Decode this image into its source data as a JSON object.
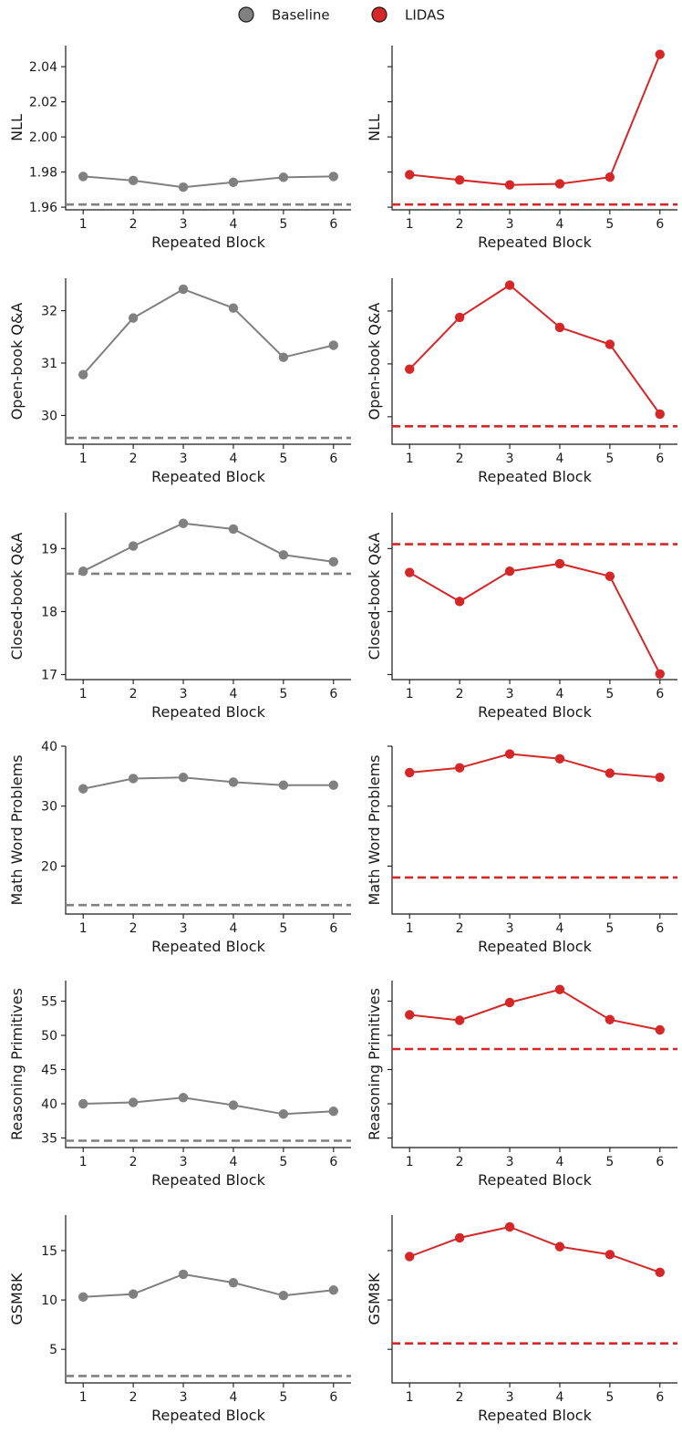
{
  "legend": {
    "placement": "top-center",
    "entries": [
      {
        "name": "Baseline",
        "color": "#808080"
      },
      {
        "name": "LIDAS",
        "color": "#d62728"
      }
    ]
  },
  "chart_data": [
    {
      "type": "line",
      "row": 0,
      "column": 0,
      "series_name": "Baseline",
      "color": "#808080",
      "ylabel": "NLL",
      "xlabel": "Repeated Block",
      "x": [
        1,
        2,
        3,
        4,
        5,
        6
      ],
      "values": [
        1.9775,
        1.9752,
        1.9714,
        1.9742,
        1.977,
        1.9775
      ],
      "baseline_dashed": 1.9615,
      "ylim": [
        1.9585,
        2.052
      ],
      "yticks": [
        1.96,
        1.98,
        2.0,
        2.02,
        2.04
      ],
      "yticklabels": [
        "1.96",
        "1.98",
        "2.00",
        "2.02",
        "2.04"
      ],
      "xticks": [
        1,
        2,
        3,
        4,
        5,
        6
      ],
      "grid": false
    },
    {
      "type": "line",
      "row": 0,
      "column": 1,
      "series_name": "LIDAS",
      "color": "#d62728",
      "ylabel": "NLL",
      "xlabel": "Repeated Block",
      "x": [
        1,
        2,
        3,
        4,
        5,
        6
      ],
      "values": [
        1.9785,
        1.9755,
        1.9727,
        1.9733,
        1.9771,
        2.047
      ],
      "baseline_dashed": 1.9615,
      "ylim": [
        1.9585,
        2.052
      ],
      "yticks": [
        1.96,
        1.98,
        2.0,
        2.02,
        2.04
      ],
      "yticklabels": [],
      "xticks": [
        1,
        2,
        3,
        4,
        5,
        6
      ],
      "grid": false
    },
    {
      "type": "line",
      "row": 1,
      "column": 0,
      "series_name": "Baseline",
      "color": "#808080",
      "ylabel": "Open-book Q&A",
      "xlabel": "Repeated Block",
      "x": [
        1,
        2,
        3,
        4,
        5,
        6
      ],
      "values": [
        30.78,
        31.86,
        32.41,
        32.05,
        31.11,
        31.34
      ],
      "baseline_dashed": 29.57,
      "ylim": [
        29.45,
        32.62
      ],
      "yticks": [
        30,
        31,
        32
      ],
      "yticklabels": [
        "30",
        "31",
        "32"
      ],
      "xticks": [
        1,
        2,
        3,
        4,
        5,
        6
      ],
      "grid": false
    },
    {
      "type": "line",
      "row": 1,
      "column": 1,
      "series_name": "LIDAS",
      "color": "#d62728",
      "ylabel": "Open-book Q&A",
      "xlabel": "Repeated Block",
      "x": [
        1,
        2,
        3,
        4,
        5,
        6
      ],
      "values": [
        30.9,
        31.88,
        32.49,
        31.69,
        31.37,
        30.05
      ],
      "baseline_dashed": 29.82,
      "ylim": [
        29.48,
        32.62
      ],
      "yticks": [
        30,
        31,
        32
      ],
      "yticklabels": [],
      "xticks": [
        1,
        2,
        3,
        4,
        5,
        6
      ],
      "grid": false
    },
    {
      "type": "line",
      "row": 2,
      "column": 0,
      "series_name": "Baseline",
      "color": "#808080",
      "ylabel": "Closed-book Q&A",
      "xlabel": "Repeated Block",
      "x": [
        1,
        2,
        3,
        4,
        5,
        6
      ],
      "values": [
        18.64,
        19.04,
        19.4,
        19.31,
        18.9,
        18.79
      ],
      "baseline_dashed": 18.6,
      "ylim": [
        16.92,
        19.57
      ],
      "yticks": [
        17,
        18,
        19
      ],
      "yticklabels": [
        "17",
        "18",
        "19"
      ],
      "xticks": [
        1,
        2,
        3,
        4,
        5,
        6
      ],
      "grid": false
    },
    {
      "type": "line",
      "row": 2,
      "column": 1,
      "series_name": "LIDAS",
      "color": "#d62728",
      "ylabel": "Closed-book Q&A",
      "xlabel": "Repeated Block",
      "x": [
        1,
        2,
        3,
        4,
        5,
        6
      ],
      "values": [
        18.62,
        18.16,
        18.64,
        18.76,
        18.56,
        17.01
      ],
      "baseline_dashed": 19.07,
      "ylim": [
        16.92,
        19.57
      ],
      "yticks": [
        17,
        18,
        19
      ],
      "yticklabels": [],
      "xticks": [
        1,
        2,
        3,
        4,
        5,
        6
      ],
      "grid": false
    },
    {
      "type": "line",
      "row": 3,
      "column": 0,
      "series_name": "Baseline",
      "color": "#808080",
      "ylabel": "Math Word Problems",
      "xlabel": "Repeated Block",
      "x": [
        1,
        2,
        3,
        4,
        5,
        6
      ],
      "values": [
        32.9,
        34.6,
        34.8,
        34.0,
        33.5,
        33.5
      ],
      "baseline_dashed": 13.5,
      "ylim": [
        12.0,
        40.0
      ],
      "yticks": [
        20,
        30,
        40
      ],
      "yticklabels": [
        "20",
        "30",
        "40"
      ],
      "xticks": [
        1,
        2,
        3,
        4,
        5,
        6
      ],
      "grid": false
    },
    {
      "type": "line",
      "row": 3,
      "column": 1,
      "series_name": "LIDAS",
      "color": "#d62728",
      "ylabel": "Math Word Problems",
      "xlabel": "Repeated Block",
      "x": [
        1,
        2,
        3,
        4,
        5,
        6
      ],
      "values": [
        35.6,
        36.4,
        38.7,
        37.9,
        35.5,
        34.8
      ],
      "baseline_dashed": 18.1,
      "ylim": [
        12.0,
        40.0
      ],
      "yticks": [
        20,
        30,
        40
      ],
      "yticklabels": [],
      "xticks": [
        1,
        2,
        3,
        4,
        5,
        6
      ],
      "grid": false
    },
    {
      "type": "line",
      "row": 4,
      "column": 0,
      "series_name": "Baseline",
      "color": "#808080",
      "ylabel": "Reasoning Primitives",
      "xlabel": "Repeated Block",
      "x": [
        1,
        2,
        3,
        4,
        5,
        6
      ],
      "values": [
        40.0,
        40.2,
        40.9,
        39.8,
        38.5,
        38.9
      ],
      "baseline_dashed": 34.6,
      "ylim": [
        33.6,
        58.0
      ],
      "yticks": [
        35,
        40,
        45,
        50,
        55
      ],
      "yticklabels": [
        "35",
        "40",
        "45",
        "50",
        "55"
      ],
      "xticks": [
        1,
        2,
        3,
        4,
        5,
        6
      ],
      "grid": false
    },
    {
      "type": "line",
      "row": 4,
      "column": 1,
      "series_name": "LIDAS",
      "color": "#d62728",
      "ylabel": "Reasoning Primitives",
      "xlabel": "Repeated Block",
      "x": [
        1,
        2,
        3,
        4,
        5,
        6
      ],
      "values": [
        53.0,
        52.2,
        54.8,
        56.7,
        52.3,
        50.8
      ],
      "baseline_dashed": 48.0,
      "ylim": [
        33.6,
        58.0
      ],
      "yticks": [
        35,
        40,
        45,
        50,
        55
      ],
      "yticklabels": [],
      "xticks": [
        1,
        2,
        3,
        4,
        5,
        6
      ],
      "grid": false
    },
    {
      "type": "line",
      "row": 5,
      "column": 0,
      "series_name": "Baseline",
      "color": "#808080",
      "ylabel": "GSM8K",
      "xlabel": "Repeated Block",
      "x": [
        1,
        2,
        3,
        4,
        5,
        6
      ],
      "values": [
        10.3,
        10.6,
        12.6,
        11.75,
        10.45,
        11.0
      ],
      "baseline_dashed": 2.3,
      "ylim": [
        1.6,
        18.6
      ],
      "yticks": [
        5,
        10,
        15
      ],
      "yticklabels": [
        "5",
        "10",
        "15"
      ],
      "xticks": [
        1,
        2,
        3,
        4,
        5,
        6
      ],
      "grid": false
    },
    {
      "type": "line",
      "row": 5,
      "column": 1,
      "series_name": "LIDAS",
      "color": "#d62728",
      "ylabel": "GSM8K",
      "xlabel": "Repeated Block",
      "x": [
        1,
        2,
        3,
        4,
        5,
        6
      ],
      "values": [
        14.4,
        16.3,
        17.4,
        15.4,
        14.6,
        12.8
      ],
      "baseline_dashed": 5.6,
      "ylim": [
        1.6,
        18.6
      ],
      "yticks": [
        5,
        10,
        15
      ],
      "yticklabels": [],
      "xticks": [
        1,
        2,
        3,
        4,
        5,
        6
      ],
      "grid": false
    }
  ]
}
